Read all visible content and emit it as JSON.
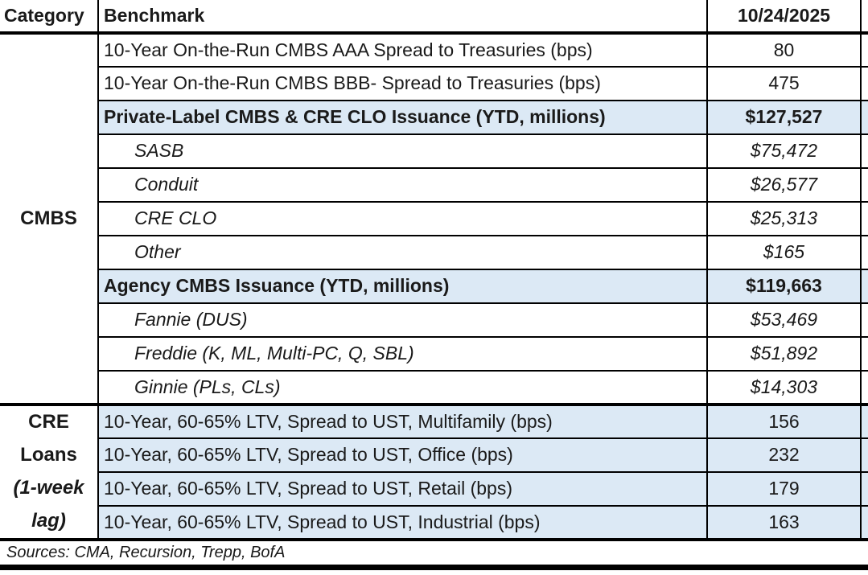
{
  "table": {
    "columns": {
      "category": "Category",
      "benchmark": "Benchmark",
      "date": "10/24/2025"
    },
    "category_groups": {
      "cmbs": {
        "label": "CMBS"
      },
      "cre_loans": {
        "lines": [
          "CRE",
          "Loans",
          "(1-week",
          "lag)"
        ]
      }
    },
    "rows": [
      {
        "benchmark": "10-Year On-the-Run CMBS AAA Spread to Treasuries (bps)",
        "value": "80",
        "style": "normal"
      },
      {
        "benchmark": "10-Year On-the-Run CMBS BBB- Spread to Treasuries (bps)",
        "value": "475",
        "style": "normal"
      },
      {
        "benchmark": "Private-Label CMBS & CRE CLO Issuance (YTD, millions)",
        "value": "$127,527",
        "style": "section"
      },
      {
        "benchmark": "SASB",
        "value": "$75,472",
        "style": "sub"
      },
      {
        "benchmark": "Conduit",
        "value": "$26,577",
        "style": "sub"
      },
      {
        "benchmark": "CRE CLO",
        "value": "$25,313",
        "style": "sub"
      },
      {
        "benchmark": "Other",
        "value": "$165",
        "style": "sub"
      },
      {
        "benchmark": "Agency CMBS Issuance (YTD, millions)",
        "value": "$119,663",
        "style": "section"
      },
      {
        "benchmark": "Fannie (DUS)",
        "value": "$53,469",
        "style": "sub"
      },
      {
        "benchmark": "Freddie (K, ML, Multi-PC, Q, SBL)",
        "value": "$51,892",
        "style": "sub"
      },
      {
        "benchmark": "Ginnie (PLs, CLs)",
        "value": "$14,303",
        "style": "sub"
      },
      {
        "benchmark": "10-Year, 60-65% LTV, Spread to UST, Multifamily (bps)",
        "value": "156",
        "style": "loan"
      },
      {
        "benchmark": "10-Year, 60-65% LTV, Spread to UST, Office (bps)",
        "value": "232",
        "style": "loan"
      },
      {
        "benchmark": "10-Year, 60-65% LTV, Spread to UST, Retail (bps)",
        "value": "179",
        "style": "loan"
      },
      {
        "benchmark": "10-Year, 60-65% LTV, Spread to UST, Industrial (bps)",
        "value": "163",
        "style": "loan"
      }
    ],
    "footer": {
      "sources": "Sources: CMA, Recursion, Trepp, BofA"
    }
  },
  "colors": {
    "highlight_blue": "#DCE9F5",
    "border_black": "#000000",
    "text_black": "#1a1a1a",
    "background_white": "#ffffff"
  }
}
